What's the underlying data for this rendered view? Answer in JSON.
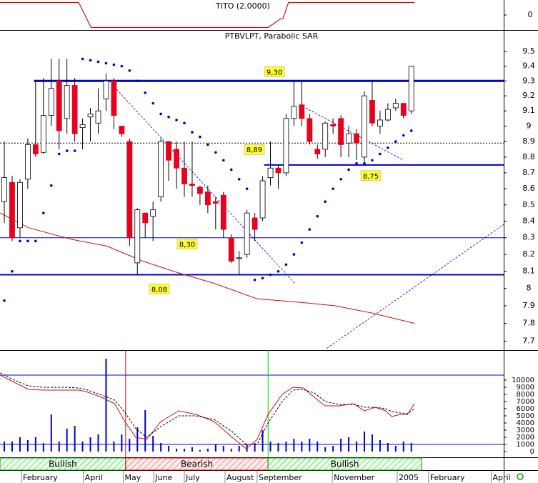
{
  "chart_data": [
    {
      "type": "line",
      "title": "TITO (2.0000)",
      "color": "#d01010",
      "x": [
        -0.55,
        9.5,
        11.1,
        33.7,
        35.3,
        35.6,
        36.3,
        52.4
      ],
      "values": [
        1,
        1,
        -1,
        -1,
        -0.3,
        -0.3,
        1,
        1
      ],
      "xlim": [
        -0.55,
        63.8
      ],
      "ylim": [
        -1.2,
        1.2
      ],
      "yticks": [
        0
      ]
    },
    {
      "type": "candlestick",
      "title": "PTBVLPT, Parabolic SAR",
      "up_color": "#ffffff",
      "down_color": "#e8001c",
      "open": [
        8.52,
        8.64,
        8.36,
        8.66,
        8.88,
        8.83,
        9.07,
        9.3,
        9.05,
        9.27,
        8.99,
        9.06,
        9.02,
        9.18,
        9.3,
        9.0,
        8.9,
        8.15,
        8.45,
        8.43,
        8.55,
        8.9,
        8.85,
        8.73,
        8.63,
        8.61,
        8.58,
        8.52,
        8.56,
        8.3,
        8.18,
        8.2,
        8.42,
        8.42,
        8.67,
        8.73,
        8.7,
        9.05,
        9.14,
        9.05,
        8.85,
        8.85,
        9.01,
        9.05,
        8.89,
        8.95,
        8.8,
        9.17,
        9.0,
        9.04,
        9.12,
        9.15,
        9.1
      ],
      "high": [
        8.9,
        8.68,
        8.66,
        8.92,
        9.3,
        9.32,
        9.45,
        9.45,
        9.45,
        9.32,
        9.05,
        9.12,
        9.25,
        9.35,
        9.32,
        9.0,
        8.92,
        8.48,
        8.45,
        8.52,
        8.92,
        8.9,
        8.9,
        8.9,
        8.9,
        8.62,
        8.62,
        8.55,
        8.58,
        8.32,
        8.22,
        8.47,
        8.45,
        8.68,
        8.9,
        8.75,
        9.08,
        9.3,
        9.3,
        9.08,
        8.88,
        9.03,
        9.05,
        9.07,
        9.0,
        8.98,
        9.23,
        9.3,
        9.1,
        9.15,
        9.18,
        9.15,
        9.4
      ],
      "low": [
        8.39,
        8.28,
        8.3,
        8.6,
        8.8,
        8.82,
        9.0,
        8.85,
        8.95,
        8.9,
        8.85,
        8.9,
        8.95,
        9.1,
        8.98,
        8.93,
        8.25,
        8.08,
        8.3,
        8.28,
        8.52,
        8.65,
        8.6,
        8.55,
        8.55,
        8.5,
        8.45,
        8.35,
        8.3,
        8.15,
        8.08,
        8.18,
        8.28,
        8.4,
        8.62,
        8.6,
        8.68,
        9.0,
        9.0,
        8.88,
        8.79,
        8.8,
        8.95,
        8.8,
        8.8,
        8.78,
        8.77,
        9.0,
        8.95,
        9.03,
        9.1,
        9.05,
        9.08
      ],
      "close": [
        8.67,
        8.3,
        8.64,
        8.88,
        8.82,
        9.07,
        9.25,
        8.97,
        9.27,
        8.95,
        9.01,
        9.08,
        9.1,
        9.3,
        9.07,
        8.95,
        8.3,
        8.47,
        8.39,
        8.47,
        8.9,
        8.78,
        8.73,
        8.63,
        8.62,
        8.57,
        8.5,
        8.51,
        8.35,
        8.16,
        8.18,
        8.45,
        8.35,
        8.65,
        8.73,
        8.7,
        9.05,
        9.13,
        9.05,
        8.9,
        8.82,
        9.02,
        9.0,
        8.88,
        8.95,
        8.89,
        9.2,
        9.02,
        9.04,
        9.11,
        9.15,
        9.07,
        9.4
      ],
      "sar": {
        "color": "#0000cc",
        "values": [
          7.93,
          8.1,
          8.28,
          8.28,
          8.28,
          8.45,
          8.62,
          8.82,
          8.84,
          8.84,
          9.45,
          9.44,
          9.43,
          9.42,
          9.41,
          9.4,
          9.37,
          9.3,
          9.22,
          9.15,
          9.08,
          9.06,
          9.04,
          9.02,
          8.96,
          8.93,
          8.88,
          8.83,
          8.78,
          8.72,
          8.66,
          8.6,
          8.05,
          8.06,
          8.08,
          8.1,
          8.14,
          8.2,
          8.27,
          8.35,
          8.43,
          8.52,
          8.6,
          8.66,
          8.72,
          8.76,
          8.76,
          8.78,
          8.82,
          8.86,
          8.9,
          8.94,
          8.97
        ]
      },
      "ma": {
        "color": "#cc1010",
        "x": [
          -0.55,
          3.1,
          8.6,
          13.1,
          17.7,
          22.3,
          26.8,
          32.3,
          37.8,
          42.3,
          46.8,
          52.4
        ],
        "values": [
          8.45,
          8.36,
          8.29,
          8.25,
          8.16,
          8.09,
          8.03,
          7.94,
          7.92,
          7.9,
          7.86,
          7.8
        ]
      },
      "levels": [
        {
          "value": 9.3,
          "label": "9,30",
          "from": 3.8,
          "width": 3,
          "dashed": false
        },
        {
          "value": 8.89,
          "label": "8,89",
          "from": -0.55,
          "width": 1,
          "dashed": true
        },
        {
          "value": 8.75,
          "label": "8,75",
          "from": 33.2,
          "width": 2,
          "dashed": false
        },
        {
          "value": 8.3,
          "label": "8,30",
          "from": -0.55,
          "width": 1,
          "dashed": false
        },
        {
          "value": 8.08,
          "label": "8,08",
          "from": -0.55,
          "width": 2,
          "dashed": false
        }
      ],
      "level_color": "#0000cc",
      "trendlines": [
        {
          "x": [
            14.05,
            37.1
          ],
          "values": [
            9.26,
            8.03
          ]
        },
        {
          "x": [
            38.5,
            51.0
          ],
          "values": [
            9.12,
            8.78
          ]
        },
        {
          "x": [
            41.2,
            63.8
          ],
          "values": [
            7.66,
            8.38
          ]
        }
      ],
      "xlim": [
        -0.55,
        63.8
      ],
      "ylim": [
        7.65,
        9.65
      ],
      "log_scale": true,
      "yticks": [
        9.5,
        9.4,
        9.3,
        9.2,
        9.1,
        9.0,
        8.9,
        8.8,
        8.7,
        8.6,
        8.5,
        8.4,
        8.3,
        8.2,
        8.1,
        8.0,
        7.9,
        7.8,
        7.7
      ]
    },
    {
      "type": "bar",
      "color": "#0000cc",
      "values": [
        1400,
        1400,
        2000,
        1600,
        2000,
        1200,
        5200,
        1400,
        3200,
        3600,
        1400,
        2000,
        2400,
        13000,
        1400,
        2400,
        1800,
        3400,
        5800,
        2200,
        1200,
        800,
        400,
        400,
        600,
        200,
        400,
        1000,
        800,
        400,
        800,
        1000,
        1200,
        3000,
        1400,
        1200,
        1400,
        1800,
        1400,
        1800,
        1400,
        600,
        800,
        1800,
        2000,
        1400,
        2800,
        2400,
        1600,
        1200,
        800,
        1400,
        1200
      ],
      "lines": [
        {
          "color": "#cc1010",
          "dashed": false,
          "x": [
            -0.55,
            1.28,
            3.1,
            4.93,
            7.66,
            9.49,
            10.4,
            12.2,
            14.1,
            15.4,
            16.8,
            18.2,
            20.0,
            22.3,
            24.5,
            26.8,
            29.1,
            30.9,
            32.3,
            33.7,
            35.5,
            36.9,
            38.2,
            39.6,
            41.0,
            42.8,
            44.6,
            46.0,
            47.4,
            48.7,
            49.5,
            50.6,
            51.5,
            52.4
          ],
          "values": [
            10700,
            9700,
            8700,
            8600,
            8600,
            8600,
            8400,
            7700,
            6700,
            4200,
            2000,
            1700,
            4200,
            5700,
            5200,
            4200,
            2000,
            400,
            1700,
            5200,
            8000,
            9000,
            8900,
            7600,
            6400,
            6400,
            6700,
            5700,
            6200,
            5700,
            4900,
            5200,
            5200,
            6700
          ]
        },
        {
          "color": "#000000",
          "dashed": true,
          "x": [
            -0.55,
            1.28,
            3.1,
            4.93,
            7.66,
            9.49,
            10.4,
            12.2,
            14.1,
            15.4,
            16.8,
            18.2,
            20.0,
            22.3,
            24.5,
            26.8,
            29.1,
            30.9,
            32.3,
            33.7,
            35.5,
            36.9,
            38.2,
            39.6,
            41.0,
            42.8,
            44.6,
            46.0,
            47.4,
            48.7,
            49.5,
            50.6,
            51.5,
            52.4
          ],
          "values": [
            11000,
            10000,
            9200,
            9000,
            9000,
            8900,
            8700,
            8000,
            7200,
            5500,
            3200,
            2000,
            3500,
            5000,
            5000,
            4500,
            2800,
            1000,
            1000,
            4000,
            7000,
            8600,
            8700,
            8200,
            7000,
            6600,
            6600,
            6200,
            6200,
            6000,
            5600,
            5400,
            5300,
            6000
          ]
        }
      ],
      "levels": [
        10700,
        1000
      ],
      "level_color": "#0000cc",
      "vlines": [
        {
          "x": 15.5,
          "color": "#cc1010"
        },
        {
          "x": 33.7,
          "color": "#00cc00"
        }
      ],
      "signals": [
        {
          "label": "Bullish",
          "from": -0.55,
          "to": 15.5,
          "color": "#009900"
        },
        {
          "label": "Bearish",
          "from": 15.5,
          "to": 33.7,
          "color": "#cc0000"
        },
        {
          "label": "Bullish",
          "from": 33.7,
          "to": 53.3,
          "color": "#009900"
        }
      ],
      "xlim": [
        -0.55,
        63.8
      ],
      "ylim": [
        -800,
        14200
      ],
      "yticks": [
        10000,
        9000,
        8000,
        7000,
        6000,
        5000,
        4000,
        3000,
        2000,
        1000,
        0
      ],
      "xticks": [
        {
          "value": 2.19,
          "label": "February"
        },
        {
          "value": 10.1,
          "label": "April"
        },
        {
          "value": 15.2,
          "label": "May"
        },
        {
          "value": 19.1,
          "label": "June"
        },
        {
          "value": 23.0,
          "label": "July"
        },
        {
          "value": 28.2,
          "label": "August"
        },
        {
          "value": 32.3,
          "label": "September"
        },
        {
          "value": 41.9,
          "label": "November"
        },
        {
          "value": 50.2,
          "label": "2005"
        },
        {
          "value": 54.2,
          "label": "February"
        },
        {
          "value": 62.2,
          "label": "April"
        }
      ]
    }
  ]
}
